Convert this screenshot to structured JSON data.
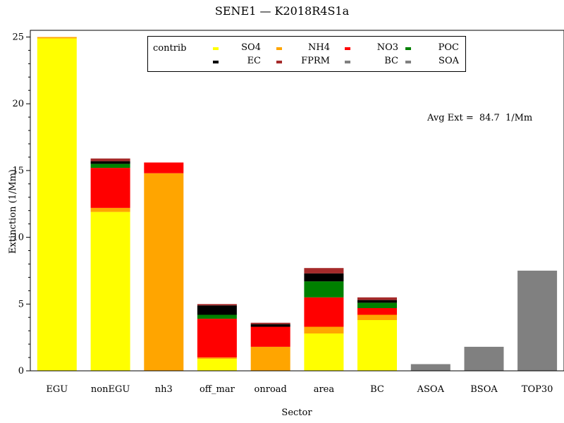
{
  "chart_data": {
    "type": "bar",
    "stacked": true,
    "title": "SENE1 — K2018R4S1a",
    "xlabel": "Sector",
    "ylabel": "Extinction (1/Mm)",
    "ylim": [
      0,
      25.5
    ],
    "yticks": [
      0,
      5,
      10,
      15,
      20,
      25
    ],
    "annotation": {
      "label": "Avg Ext =",
      "value": "84.7",
      "unit": "1/Mm"
    },
    "legend": {
      "title": "contrib",
      "placement": "top-center"
    },
    "categories": [
      "EGU",
      "nonEGU",
      "nh3",
      "off_mar",
      "onroad",
      "area",
      "BC",
      "ASOA",
      "BSOA",
      "TOP30"
    ],
    "series": [
      {
        "name": "SO4",
        "color": "#ffff00",
        "values": [
          24.9,
          11.9,
          0.0,
          0.9,
          0.0,
          2.8,
          3.8,
          0.0,
          0.0,
          0.0
        ]
      },
      {
        "name": "NH4",
        "color": "#ffa500",
        "values": [
          0.1,
          0.3,
          14.8,
          0.1,
          1.8,
          0.5,
          0.4,
          0.0,
          0.0,
          0.0
        ]
      },
      {
        "name": "NO3",
        "color": "#ff0000",
        "values": [
          0.0,
          3.0,
          0.8,
          2.9,
          1.5,
          2.2,
          0.5,
          0.0,
          0.0,
          0.0
        ]
      },
      {
        "name": "POC",
        "color": "#008000",
        "values": [
          0.0,
          0.3,
          0.0,
          0.3,
          0.0,
          1.2,
          0.4,
          0.0,
          0.0,
          0.0
        ]
      },
      {
        "name": "EC",
        "color": "#000000",
        "values": [
          0.0,
          0.2,
          0.0,
          0.7,
          0.2,
          0.6,
          0.2,
          0.0,
          0.0,
          0.0
        ]
      },
      {
        "name": "FPRM",
        "color": "#a52a2a",
        "values": [
          0.0,
          0.2,
          0.0,
          0.1,
          0.1,
          0.4,
          0.2,
          0.0,
          0.0,
          0.0
        ]
      },
      {
        "name": "BC",
        "color": "#808080",
        "values": [
          0.0,
          0.0,
          0.0,
          0.0,
          0.0,
          0.0,
          0.0,
          0.0,
          0.0,
          0.0
        ]
      },
      {
        "name": "SOA",
        "color": "#808080",
        "values": [
          0.0,
          0.0,
          0.0,
          0.0,
          0.0,
          0.0,
          0.0,
          0.5,
          1.8,
          7.5
        ]
      }
    ]
  }
}
